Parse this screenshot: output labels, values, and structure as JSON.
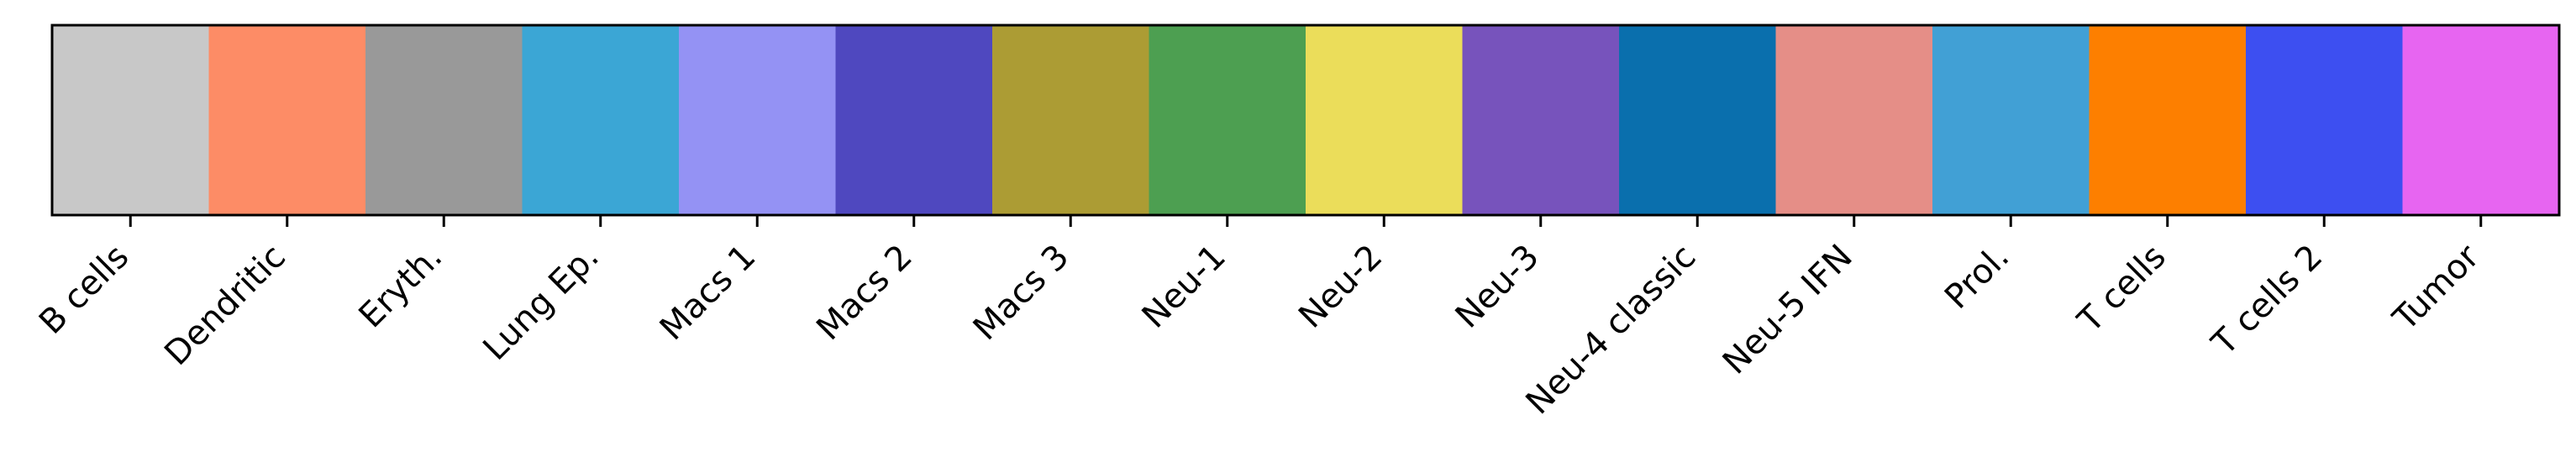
{
  "chart_data": {
    "type": "bar",
    "categories": [
      "B cells",
      "Dendritic",
      "Eryth.",
      "Lung Ep.",
      "Macs 1",
      "Macs 2",
      "Macs 3",
      "Neu-1",
      "Neu-2",
      "Neu-3",
      "Neu-4 classic",
      "Neu-5 IFN",
      "Prol.",
      "T cells",
      "T cells 2",
      "Tumor"
    ],
    "colors": [
      "#c8c8c8",
      "#fd8c66",
      "#999999",
      "#3ba6d5",
      "#9492f4",
      "#4f48bf",
      "#ac9c34",
      "#4d9f51",
      "#ebdd5a",
      "#7753bc",
      "#0a6fad",
      "#e58e87",
      "#41a0d5",
      "#fd7f00",
      "#3d4ff1",
      "#e765f1"
    ],
    "values": [
      1,
      1,
      1,
      1,
      1,
      1,
      1,
      1,
      1,
      1,
      1,
      1,
      1,
      1,
      1,
      1
    ],
    "ylim": [
      0,
      1
    ],
    "grid": false,
    "legend": "none",
    "xtick_rotation": 45,
    "xlabel": "",
    "ylabel": "",
    "title": ""
  }
}
